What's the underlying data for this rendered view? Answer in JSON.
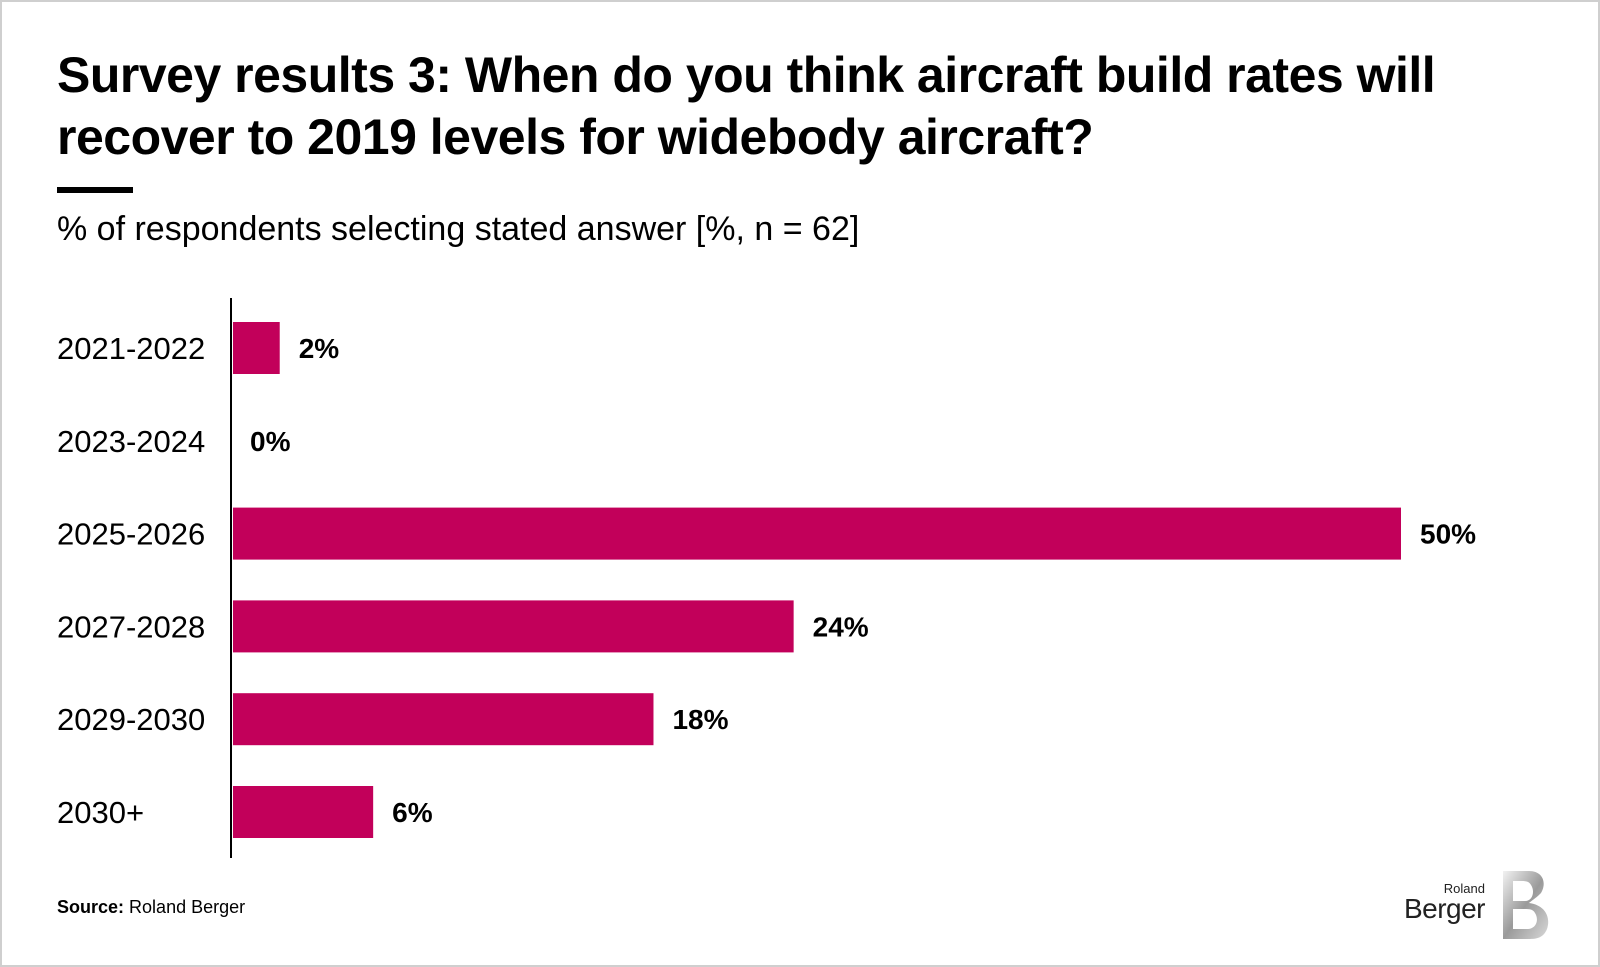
{
  "title": "Survey results 3: When do you think aircraft build rates will recover to 2019 levels for widebody aircraft?",
  "subtitle": "% of respondents selecting stated answer [%, n = 62]",
  "source": {
    "label": "Source:",
    "text": "Roland Berger"
  },
  "logo": {
    "line1": "Roland",
    "line2": "Berger"
  },
  "colors": {
    "bar": "#c2005a",
    "text": "#000000"
  },
  "chart_data": {
    "type": "bar",
    "orientation": "horizontal",
    "categories": [
      "2021-2022",
      "2023-2024",
      "2025-2026",
      "2027-2028",
      "2029-2030",
      "2030+"
    ],
    "values": [
      2,
      0,
      50,
      24,
      18,
      6
    ],
    "data_labels": [
      "2%",
      "0%",
      "50%",
      "24%",
      "18%",
      "6%"
    ],
    "title": "Survey results 3: When do you think aircraft build rates will recover to 2019 levels for widebody aircraft?",
    "ylabel": "",
    "xlabel": "",
    "xlim": [
      0,
      50
    ],
    "grid": false,
    "legend": "none"
  }
}
